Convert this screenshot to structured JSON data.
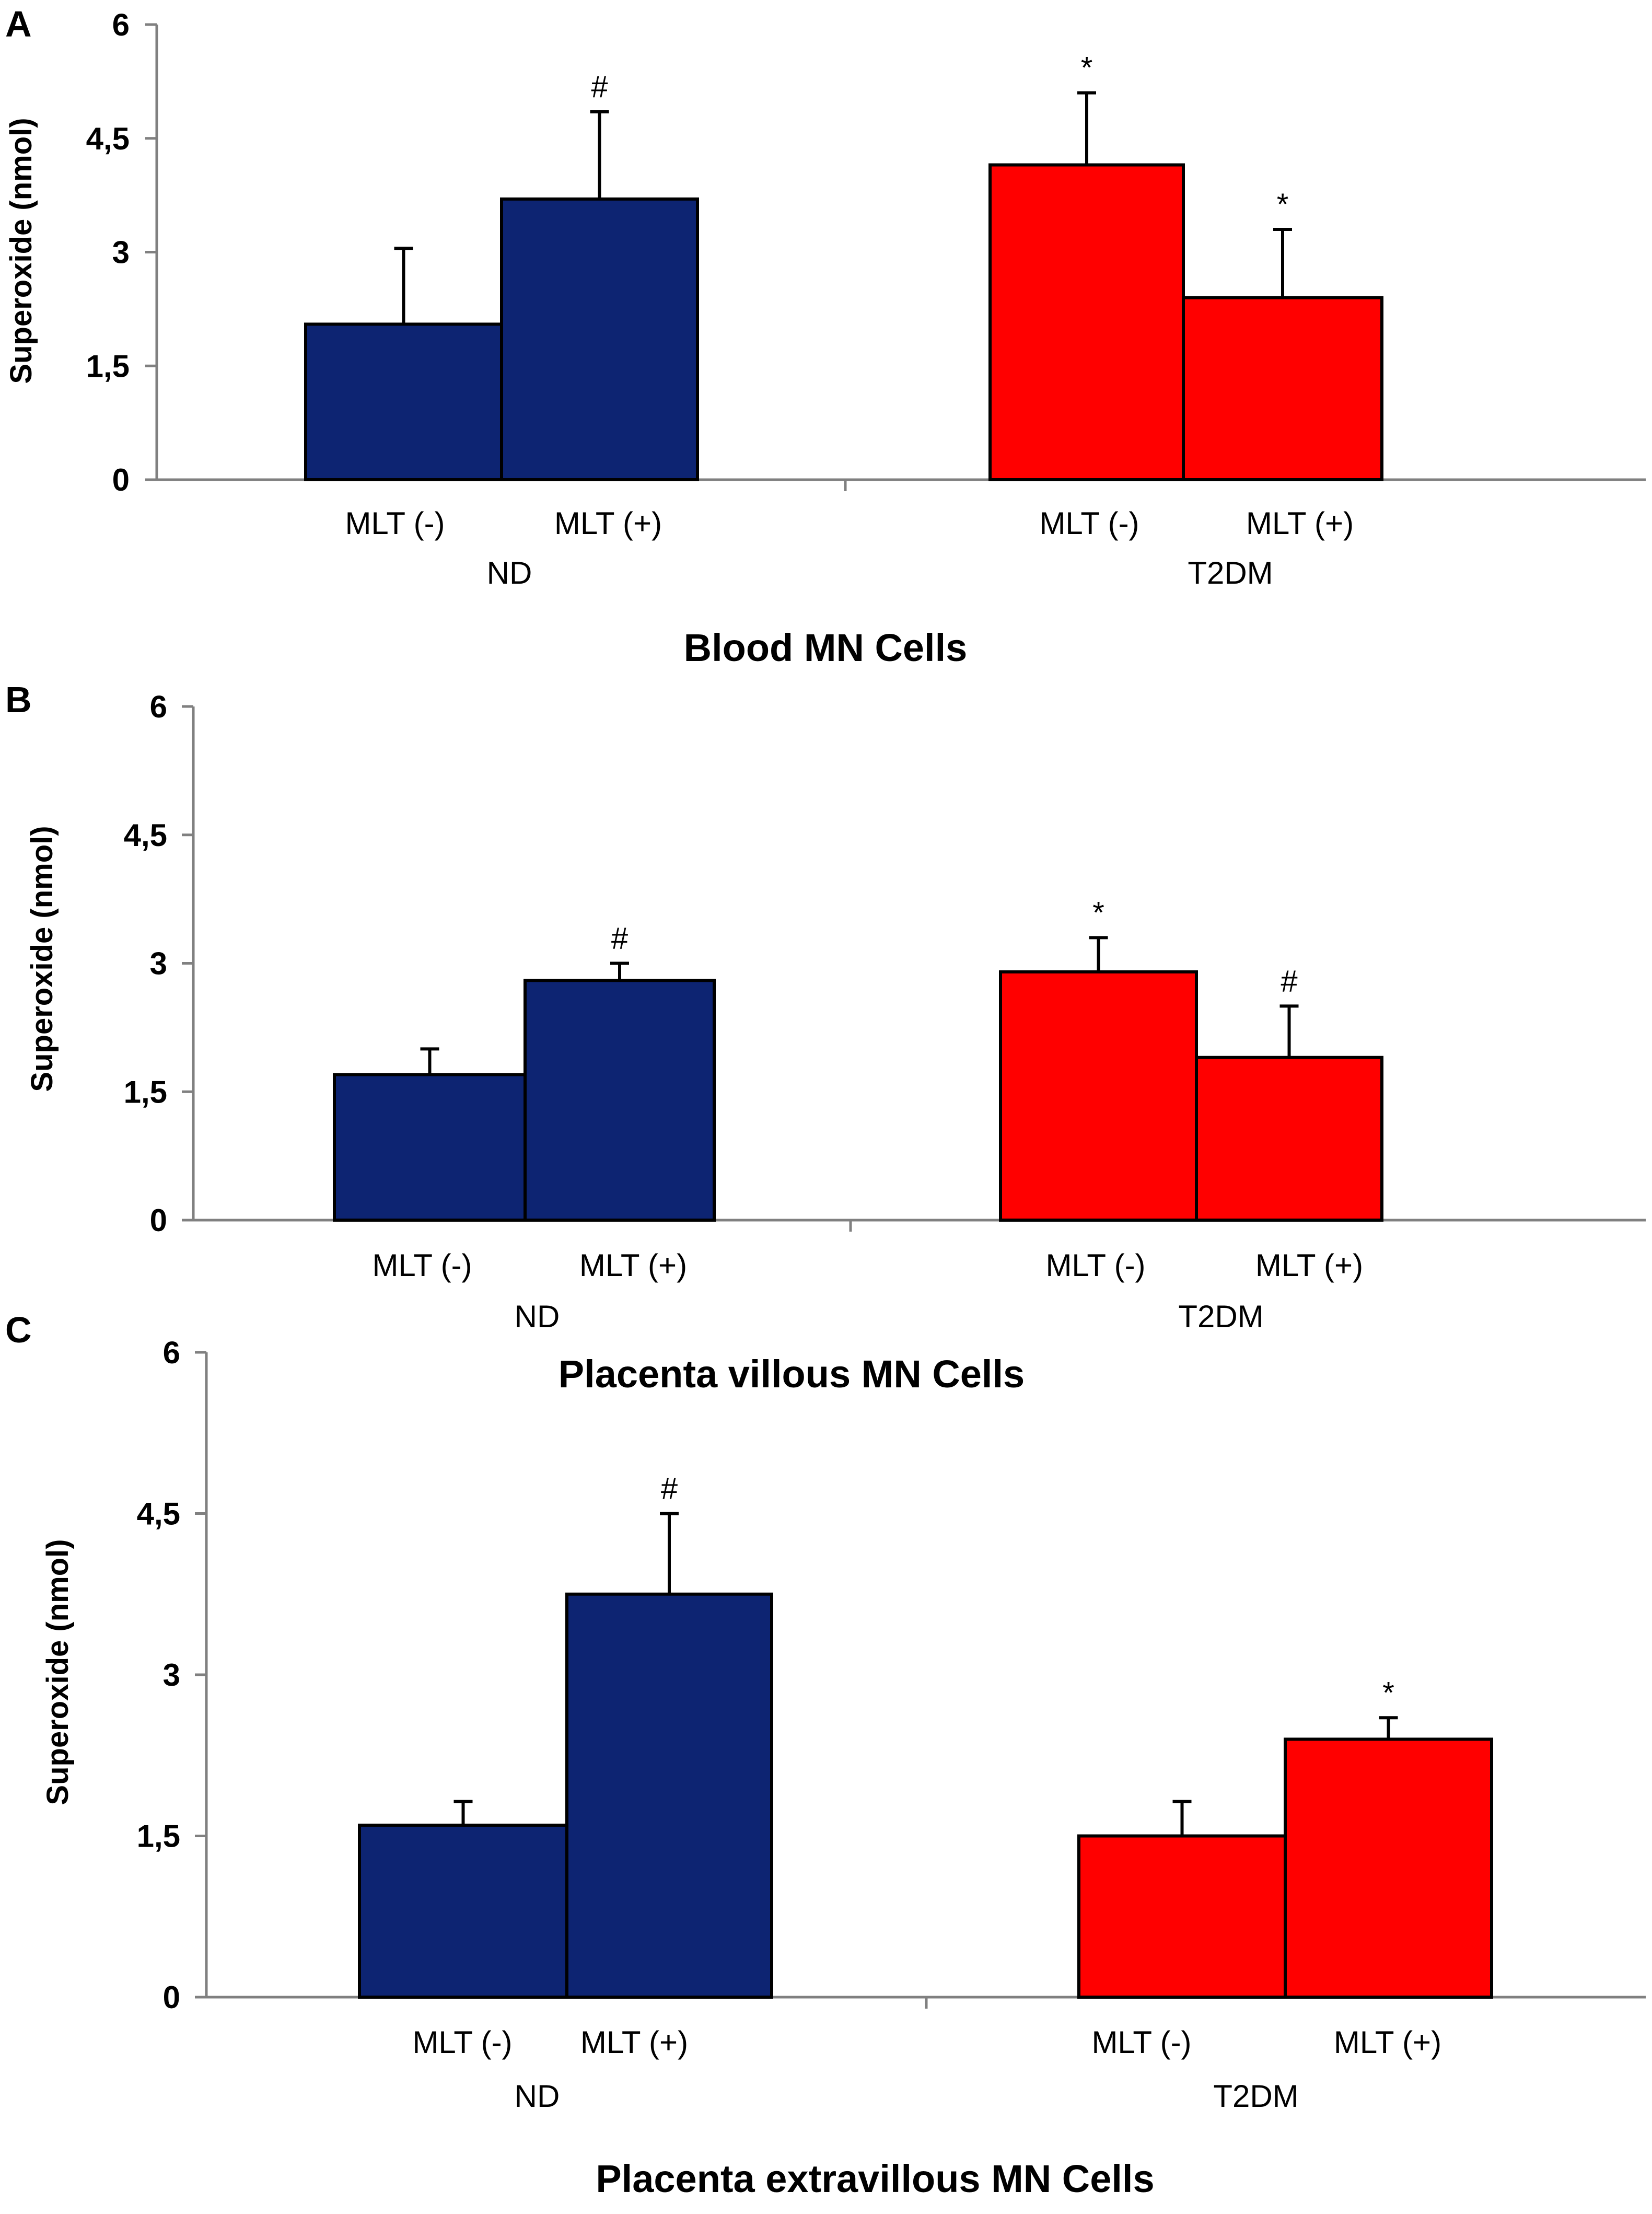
{
  "colors": {
    "ND": "#0d2472",
    "T2DM": "#ff0000",
    "axis": "#808080",
    "outline": "#000000"
  },
  "chart_data": [
    {
      "panel": "A",
      "type": "bar",
      "title": "Blood MN Cells",
      "ylabel": "Superoxide (nmol)",
      "ylim": [
        0,
        6
      ],
      "yticks": [
        "0",
        "1,5",
        "3",
        "4,5",
        "6"
      ],
      "groups": [
        "ND",
        "T2DM"
      ],
      "categories": [
        "MLT (-)",
        "MLT (+)"
      ],
      "series": [
        {
          "name": "ND",
          "values": [
            2.05,
            3.7
          ],
          "errors": [
            1.0,
            1.15
          ],
          "annotations": [
            "",
            "#"
          ]
        },
        {
          "name": "T2DM",
          "values": [
            4.15,
            2.4
          ],
          "errors": [
            0.95,
            0.9
          ],
          "annotations": [
            "*",
            "*"
          ]
        }
      ]
    },
    {
      "panel": "B",
      "type": "bar",
      "title": "Placenta villous MN Cells",
      "ylabel": "Superoxide (nmol)",
      "ylim": [
        0,
        6
      ],
      "yticks": [
        "0",
        "1,5",
        "3",
        "4,5",
        "6"
      ],
      "groups": [
        "ND",
        "T2DM"
      ],
      "categories": [
        "MLT (-)",
        "MLT (+)"
      ],
      "series": [
        {
          "name": "ND",
          "values": [
            1.7,
            2.8
          ],
          "errors": [
            0.3,
            0.2
          ],
          "annotations": [
            "",
            "#"
          ]
        },
        {
          "name": "T2DM",
          "values": [
            2.9,
            1.9
          ],
          "errors": [
            0.4,
            0.6
          ],
          "annotations": [
            "*",
            "#"
          ]
        }
      ]
    },
    {
      "panel": "C",
      "type": "bar",
      "title": "Placenta extravillous MN Cells",
      "ylabel": "Superoxide (nmol)",
      "ylim": [
        0,
        6
      ],
      "yticks": [
        "0",
        "1,5",
        "3",
        "4,5",
        "6"
      ],
      "groups": [
        "ND",
        "T2DM"
      ],
      "categories": [
        "MLT (-)",
        "MLT (+)"
      ],
      "series": [
        {
          "name": "ND",
          "values": [
            1.6,
            3.75
          ],
          "errors": [
            0.22,
            0.75
          ],
          "annotations": [
            "",
            "#"
          ]
        },
        {
          "name": "T2DM",
          "values": [
            1.5,
            2.4
          ],
          "errors": [
            0.32,
            0.2
          ],
          "annotations": [
            "",
            "*"
          ]
        }
      ]
    }
  ]
}
